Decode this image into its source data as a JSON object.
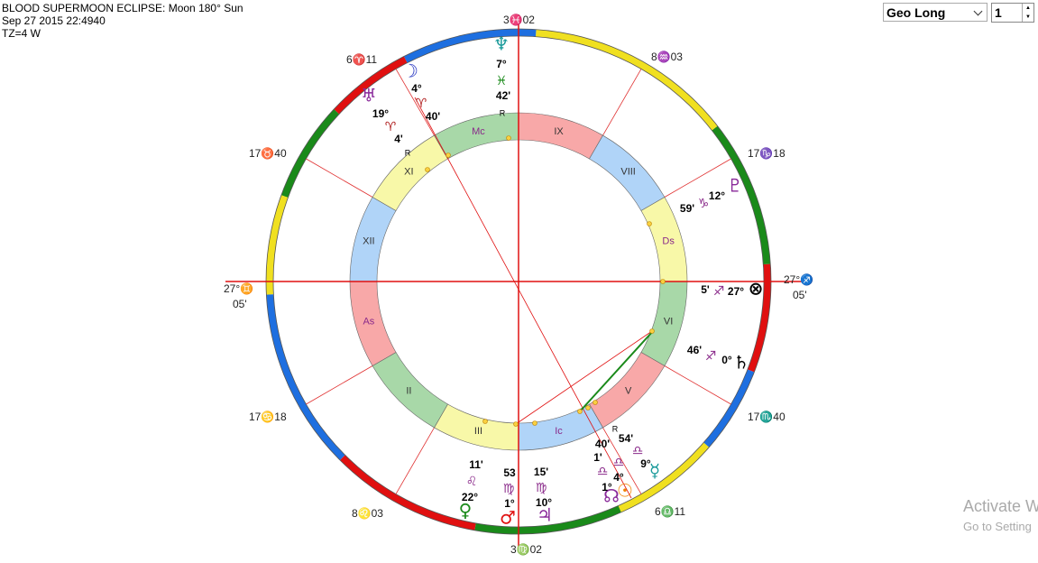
{
  "header": {
    "lines": [
      "BLOOD SUPERMOON ECLIPSE: Moon 180° Sun",
      "Sep 27 2015 22:4940",
      "TZ=4 W"
    ]
  },
  "controls": {
    "mode": "Geo Long",
    "value": "1"
  },
  "cusps": [
    [
      "3♓02"
    ],
    [
      "8♒03"
    ],
    [
      "17♑18"
    ],
    [
      "27°♐",
      "05'"
    ],
    [
      "17♏40"
    ],
    [
      "6♎11"
    ],
    [
      "3♍02"
    ],
    [
      "8♌03"
    ],
    [
      "17♋18"
    ],
    [
      "27°♊",
      "05'"
    ],
    [
      "17♉40"
    ],
    [
      "6♈11"
    ]
  ],
  "houses": [
    "IX",
    "VIII",
    "Ds",
    "VI",
    "V",
    "Ic",
    "III",
    "II",
    "As",
    "XII",
    "XI",
    "Mc"
  ],
  "planets": [
    {
      "glyph": "♆",
      "lines": [
        "7°",
        "♓",
        "42'"
      ],
      "retrograde": "R"
    },
    {
      "glyph": "☽",
      "lines": [
        "4°",
        "♈",
        "40'"
      ]
    },
    {
      "glyph": "♅",
      "lines": [
        "19°",
        "♈",
        "4'"
      ],
      "retrograde": "R"
    },
    {
      "glyph": "♇",
      "lines": [
        "12°",
        "♑",
        "59'"
      ]
    },
    {
      "glyph": "⊗",
      "lines": [
        "27°",
        "♐",
        "5'"
      ]
    },
    {
      "glyph": "♄",
      "lines": [
        "0°",
        "♐",
        "46'"
      ]
    },
    {
      "glyph": "☿",
      "lines": [
        "9°",
        "♎",
        "54'"
      ],
      "retrograde": "R"
    },
    {
      "glyph": "☉",
      "lines": [
        "4°",
        "♎",
        "40'"
      ]
    },
    {
      "glyph": "☊",
      "lines": [
        "1°",
        "♎",
        "1'"
      ]
    },
    {
      "glyph": "♂",
      "lines": [
        "1°",
        "♍",
        "53"
      ]
    },
    {
      "glyph": "♃",
      "lines": [
        "10°",
        "♍",
        "15'"
      ]
    },
    {
      "glyph": "♀",
      "lines": [
        "22°",
        "♌",
        "11'"
      ]
    }
  ],
  "watermark": [
    "Activate W",
    "Go to Setting"
  ]
}
